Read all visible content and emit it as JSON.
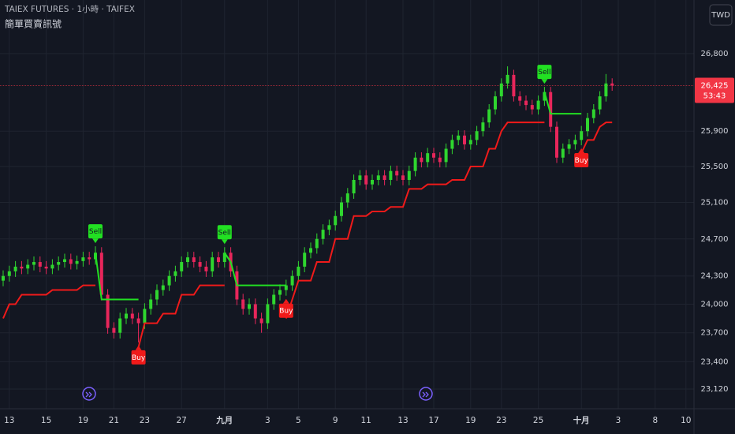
{
  "header": {
    "symbol": "TAIEX FUTURES · 1小時 · TAIFEX",
    "indicator": "簡單買賣訊號",
    "currency": "TWD"
  },
  "chart_data": {
    "type": "candlestick",
    "log": true,
    "grid": true,
    "up_color": "#2fd62f",
    "down_color": "#e8265b",
    "ylim": [
      22920,
      27440
    ],
    "yticks": [
      {
        "value": 26800,
        "label": "26,800"
      },
      {
        "value": 25900,
        "label": "25,900"
      },
      {
        "value": 25500,
        "label": "25,500"
      },
      {
        "value": 25100,
        "label": "25,100"
      },
      {
        "value": 24700,
        "label": "24,700"
      },
      {
        "value": 24300,
        "label": "24,300"
      },
      {
        "value": 24000,
        "label": "24,000"
      },
      {
        "value": 23700,
        "label": "23,700"
      },
      {
        "value": 23400,
        "label": "23,400"
      },
      {
        "value": 23120,
        "label": "23,120"
      }
    ],
    "categories": [
      null,
      "13",
      null,
      null,
      null,
      null,
      null,
      "15",
      null,
      null,
      null,
      null,
      null,
      "19",
      null,
      null,
      null,
      null,
      "21",
      null,
      null,
      null,
      null,
      "23",
      null,
      null,
      null,
      null,
      null,
      "27",
      null,
      null,
      null,
      null,
      null,
      null,
      "九月",
      null,
      null,
      null,
      null,
      null,
      null,
      "3",
      null,
      null,
      null,
      null,
      "5",
      null,
      null,
      null,
      null,
      null,
      "9",
      null,
      null,
      null,
      null,
      "11",
      null,
      null,
      null,
      null,
      null,
      "13",
      null,
      null,
      null,
      null,
      "17",
      null,
      null,
      null,
      null,
      null,
      "19",
      null,
      null,
      null,
      null,
      "23",
      null,
      null,
      null,
      null,
      null,
      "25",
      null,
      null,
      null,
      null,
      null,
      null,
      "十月",
      null,
      null,
      null,
      null,
      null,
      "3",
      null,
      null,
      null,
      null,
      null,
      "8",
      null,
      null,
      null,
      null,
      "10"
    ],
    "open": [
      24250,
      24300,
      24350,
      24400,
      24380,
      24420,
      24450,
      24400,
      24380,
      24420,
      24450,
      24480,
      24430,
      24460,
      24500,
      24480,
      24550,
      24100,
      23750,
      23700,
      23850,
      23900,
      23850,
      23800,
      23950,
      24050,
      24150,
      24200,
      24300,
      24350,
      24450,
      24500,
      24450,
      24400,
      24350,
      24500,
      24450,
      24550,
      24350,
      24050,
      23950,
      24000,
      23850,
      23800,
      24000,
      24100,
      24150,
      24200,
      24300,
      24400,
      24550,
      24600,
      24700,
      24800,
      24850,
      24950,
      25100,
      25200,
      25350,
      25400,
      25300,
      25350,
      25400,
      25350,
      25450,
      25400,
      25350,
      25450,
      25600,
      25550,
      25650,
      25600,
      25550,
      25700,
      25800,
      25850,
      25750,
      25800,
      25900,
      26000,
      26150,
      26300,
      26450,
      26550,
      26300,
      26250,
      26200,
      26150,
      26250,
      26350,
      25950,
      25600,
      25700,
      25750,
      25800,
      25900,
      26050,
      26150,
      26300,
      26450,
      null,
      null,
      null,
      null,
      null,
      null,
      null,
      null,
      null,
      null,
      null,
      null
    ],
    "high": [
      24360,
      24410,
      24460,
      24460,
      24480,
      24510,
      24510,
      24460,
      24480,
      24510,
      24540,
      24540,
      24520,
      24560,
      24560,
      24620,
      24610,
      24160,
      23810,
      23910,
      23960,
      23960,
      23910,
      24010,
      24110,
      24210,
      24260,
      24360,
      24410,
      24510,
      24560,
      24560,
      24510,
      24460,
      24560,
      24560,
      24610,
      24610,
      24410,
      24110,
      24060,
      24060,
      23910,
      24060,
      24160,
      24210,
      24260,
      24360,
      24460,
      24610,
      24660,
      24760,
      24860,
      24910,
      25010,
      25160,
      25260,
      25410,
      25460,
      25460,
      25410,
      25460,
      25460,
      25510,
      25510,
      25460,
      25510,
      25660,
      25660,
      25710,
      25710,
      25660,
      25760,
      25860,
      25910,
      25910,
      25860,
      25960,
      26060,
      26210,
      26360,
      26510,
      26650,
      26610,
      26360,
      26310,
      26260,
      26310,
      26410,
      26410,
      26010,
      25760,
      25810,
      25860,
      25960,
      26110,
      26210,
      26360,
      26560,
      26510,
      null,
      null,
      null,
      null,
      null,
      null,
      null,
      null,
      null,
      null,
      null,
      null
    ],
    "low": [
      24190,
      24240,
      24290,
      24320,
      24320,
      24360,
      24340,
      24320,
      24320,
      24360,
      24390,
      24370,
      24370,
      24400,
      24420,
      24420,
      24040,
      23690,
      23640,
      23640,
      23790,
      23790,
      23600,
      23740,
      23890,
      23990,
      24090,
      24140,
      24240,
      24290,
      24390,
      24390,
      24340,
      24290,
      24290,
      24390,
      24390,
      24290,
      23990,
      23890,
      23890,
      23790,
      23700,
      23740,
      23940,
      24040,
      24090,
      24140,
      24240,
      24340,
      24490,
      24540,
      24640,
      24740,
      24790,
      24890,
      25040,
      25140,
      25290,
      25240,
      25240,
      25290,
      25290,
      25290,
      25340,
      25290,
      25290,
      25390,
      25490,
      25490,
      25540,
      25490,
      25490,
      25640,
      25740,
      25690,
      25690,
      25740,
      25840,
      25940,
      26090,
      26240,
      26390,
      26240,
      26190,
      26140,
      26090,
      26090,
      26190,
      25890,
      25540,
      25540,
      25640,
      25690,
      25740,
      25840,
      25990,
      26090,
      26240,
      26365,
      null,
      null,
      null,
      null,
      null,
      null,
      null,
      null,
      null,
      null,
      null,
      null
    ],
    "close": [
      24300,
      24350,
      24400,
      24380,
      24420,
      24450,
      24400,
      24380,
      24420,
      24450,
      24480,
      24430,
      24460,
      24500,
      24480,
      24550,
      24100,
      23750,
      23700,
      23850,
      23900,
      23850,
      23800,
      23950,
      24050,
      24150,
      24200,
      24300,
      24350,
      24450,
      24500,
      24450,
      24400,
      24350,
      24500,
      24450,
      24550,
      24350,
      24050,
      23950,
      24000,
      23850,
      23800,
      24000,
      24100,
      24150,
      24200,
      24300,
      24400,
      24550,
      24600,
      24700,
      24800,
      24850,
      24950,
      25100,
      25200,
      25350,
      25400,
      25300,
      25350,
      25400,
      25350,
      25450,
      25400,
      25350,
      25450,
      25600,
      25550,
      25650,
      25600,
      25550,
      25700,
      25800,
      25850,
      25750,
      25800,
      25900,
      26000,
      26150,
      26300,
      26450,
      26550,
      26300,
      26250,
      26200,
      26150,
      26250,
      26350,
      25950,
      25600,
      25700,
      25750,
      25800,
      25900,
      26050,
      26150,
      26300,
      26450,
      26425,
      null,
      null,
      null,
      null,
      null,
      null,
      null,
      null,
      null,
      null,
      null,
      null
    ],
    "series": [
      {
        "color": "#f01a1a",
        "values": [
          23850,
          24000,
          24000,
          24100,
          24100,
          24100,
          24100,
          24100,
          24150,
          24150,
          24150,
          24150,
          24150,
          24200,
          24200,
          24200,
          null,
          null,
          null,
          null,
          null,
          null,
          23550,
          23800,
          23800,
          23800,
          23900,
          23900,
          23900,
          24100,
          24100,
          24100,
          24200,
          24200,
          24200,
          24200,
          24200,
          null,
          null,
          null,
          null,
          null,
          null,
          null,
          null,
          null,
          23850,
          24050,
          24250,
          24250,
          24250,
          24450,
          24450,
          24450,
          24700,
          24700,
          24700,
          24950,
          24950,
          24950,
          25000,
          25000,
          25000,
          25050,
          25050,
          25050,
          25250,
          25250,
          25250,
          25300,
          25300,
          25300,
          25300,
          25350,
          25350,
          25350,
          25500,
          25500,
          25500,
          25700,
          25700,
          25900,
          26000,
          26000,
          26000,
          26000,
          26000,
          26000,
          26000,
          null,
          null,
          null,
          null,
          null,
          25650,
          25800,
          25800,
          25950,
          26000,
          26000,
          null,
          null,
          null,
          null,
          null,
          null,
          null,
          null,
          null,
          null,
          null,
          null
        ]
      },
      {
        "color": "#22e022",
        "values": [
          null,
          null,
          null,
          null,
          null,
          null,
          null,
          null,
          null,
          null,
          null,
          null,
          null,
          null,
          null,
          24550,
          24050,
          24050,
          24050,
          24050,
          24050,
          24050,
          24050,
          null,
          null,
          null,
          null,
          null,
          null,
          null,
          null,
          null,
          null,
          null,
          null,
          null,
          24550,
          24450,
          24200,
          24200,
          24200,
          24200,
          24200,
          24200,
          24200,
          24200,
          24200,
          null,
          null,
          null,
          null,
          null,
          null,
          null,
          null,
          null,
          null,
          null,
          null,
          null,
          null,
          null,
          null,
          null,
          null,
          null,
          null,
          null,
          null,
          null,
          null,
          null,
          null,
          null,
          null,
          null,
          null,
          null,
          null,
          null,
          null,
          null,
          null,
          null,
          null,
          null,
          null,
          null,
          26350,
          26100,
          26100,
          26100,
          26100,
          26100,
          26100,
          null,
          null,
          null,
          null,
          null,
          null,
          null,
          null,
          null,
          null,
          null,
          null,
          null,
          null,
          null,
          null,
          null
        ]
      }
    ],
    "signals": {
      "sell": {
        "label": "Sell",
        "color": "#22e022",
        "at": [
          15,
          36,
          88
        ]
      },
      "buy": {
        "label": "Buy",
        "color": "#f01a1a",
        "at": [
          22,
          46,
          94
        ]
      }
    },
    "last_price": {
      "value": 26425,
      "label": "26,425",
      "countdown": "53:43",
      "color": "#f23645"
    }
  }
}
